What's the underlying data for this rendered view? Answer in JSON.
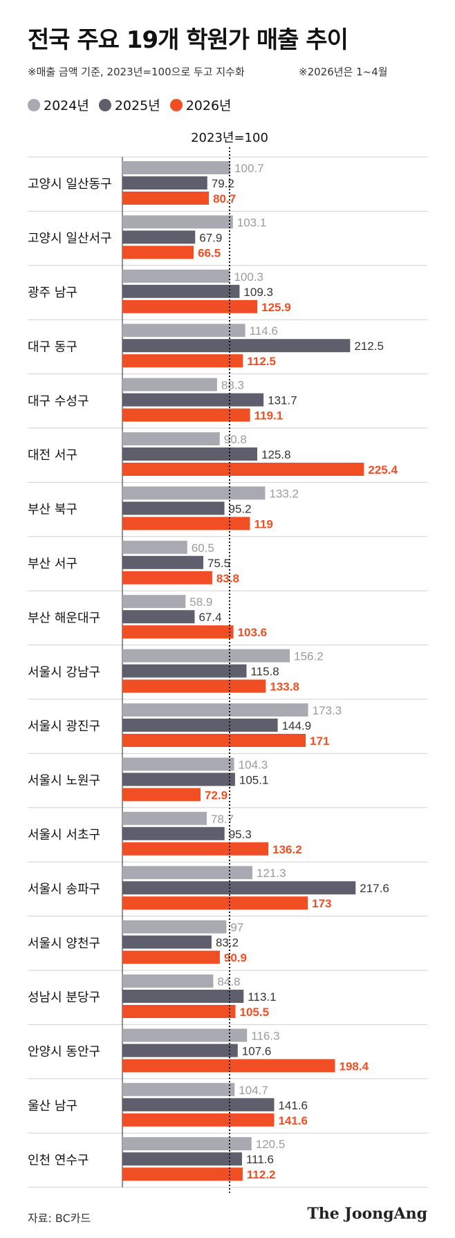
{
  "header": {
    "title": "전국 주요 19개 학원가 매출 추이",
    "note1": "※매출 금액 기준, 2023년=100으로 두고 지수화",
    "note2": "※2026년은 1~4월"
  },
  "colors": {
    "y2024": "#a9a9b1",
    "y2025": "#5e5e6c",
    "y2026": "#f04e23",
    "grid": "#cfcfcf"
  },
  "footer": {
    "source": "자료: BC카드",
    "brand": "The JoongAng"
  },
  "chart_data": {
    "type": "bar",
    "orientation": "horizontal",
    "reference_label": "2023년=100",
    "reference_value": 100,
    "xlim": [
      0,
      230
    ],
    "categories": [
      "고양시 일산동구",
      "고양시 일산서구",
      "광주 남구",
      "대구 동구",
      "대구 수성구",
      "대전 서구",
      "부산 북구",
      "부산 서구",
      "부산 해운대구",
      "서울시 강남구",
      "서울시 광진구",
      "서울시 노원구",
      "서울시 서초구",
      "서울시 송파구",
      "서울시 양천구",
      "성남시 분당구",
      "안양시 동안구",
      "울산 남구",
      "인천 연수구"
    ],
    "series": [
      {
        "name": "2024년",
        "color": "#a9a9b1",
        "values": [
          100.7,
          103.1,
          100.3,
          114.6,
          88.3,
          90.8,
          133.2,
          60.5,
          58.9,
          156.2,
          173.3,
          104.3,
          78.7,
          121.3,
          97,
          84.8,
          116.3,
          104.7,
          120.5
        ],
        "labels": [
          "100.7",
          "103.1",
          "100.3",
          "114.6",
          "88.3",
          "90.8",
          "133.2",
          "60.5",
          "58.9",
          "156.2",
          "173.3",
          "104.3",
          "78.7",
          "121.3",
          "97",
          "84.8",
          "116.3",
          "104.7",
          "120.5"
        ]
      },
      {
        "name": "2025년",
        "color": "#5e5e6c",
        "values": [
          79.2,
          67.9,
          109.3,
          212.5,
          131.7,
          125.8,
          95.2,
          75.5,
          67.4,
          115.8,
          144.9,
          105.1,
          95.3,
          217.6,
          83.2,
          113.1,
          107.6,
          141.6,
          111.6
        ],
        "labels": [
          "79.2",
          "67.9",
          "109.3",
          "212.5",
          "131.7",
          "125.8",
          "95.2",
          "75.5",
          "67.4",
          "115.8",
          "144.9",
          "105.1",
          "95.3",
          "217.6",
          "83.2",
          "113.1",
          "107.6",
          "141.6",
          "111.6"
        ]
      },
      {
        "name": "2026년",
        "color": "#f04e23",
        "values": [
          80.7,
          66.5,
          125.9,
          112.5,
          119.1,
          225.4,
          119,
          83.8,
          103.6,
          133.8,
          171,
          72.9,
          136.2,
          173,
          90.9,
          105.5,
          198.4,
          141.6,
          112.2
        ],
        "labels": [
          "80.7",
          "66.5",
          "125.9",
          "112.5",
          "119.1",
          "225.4",
          "119",
          "83.8",
          "103.6",
          "133.8",
          "171",
          "72.9",
          "136.2",
          "173",
          "90.9",
          "105.5",
          "198.4",
          "141.6",
          "112.2"
        ]
      }
    ]
  }
}
